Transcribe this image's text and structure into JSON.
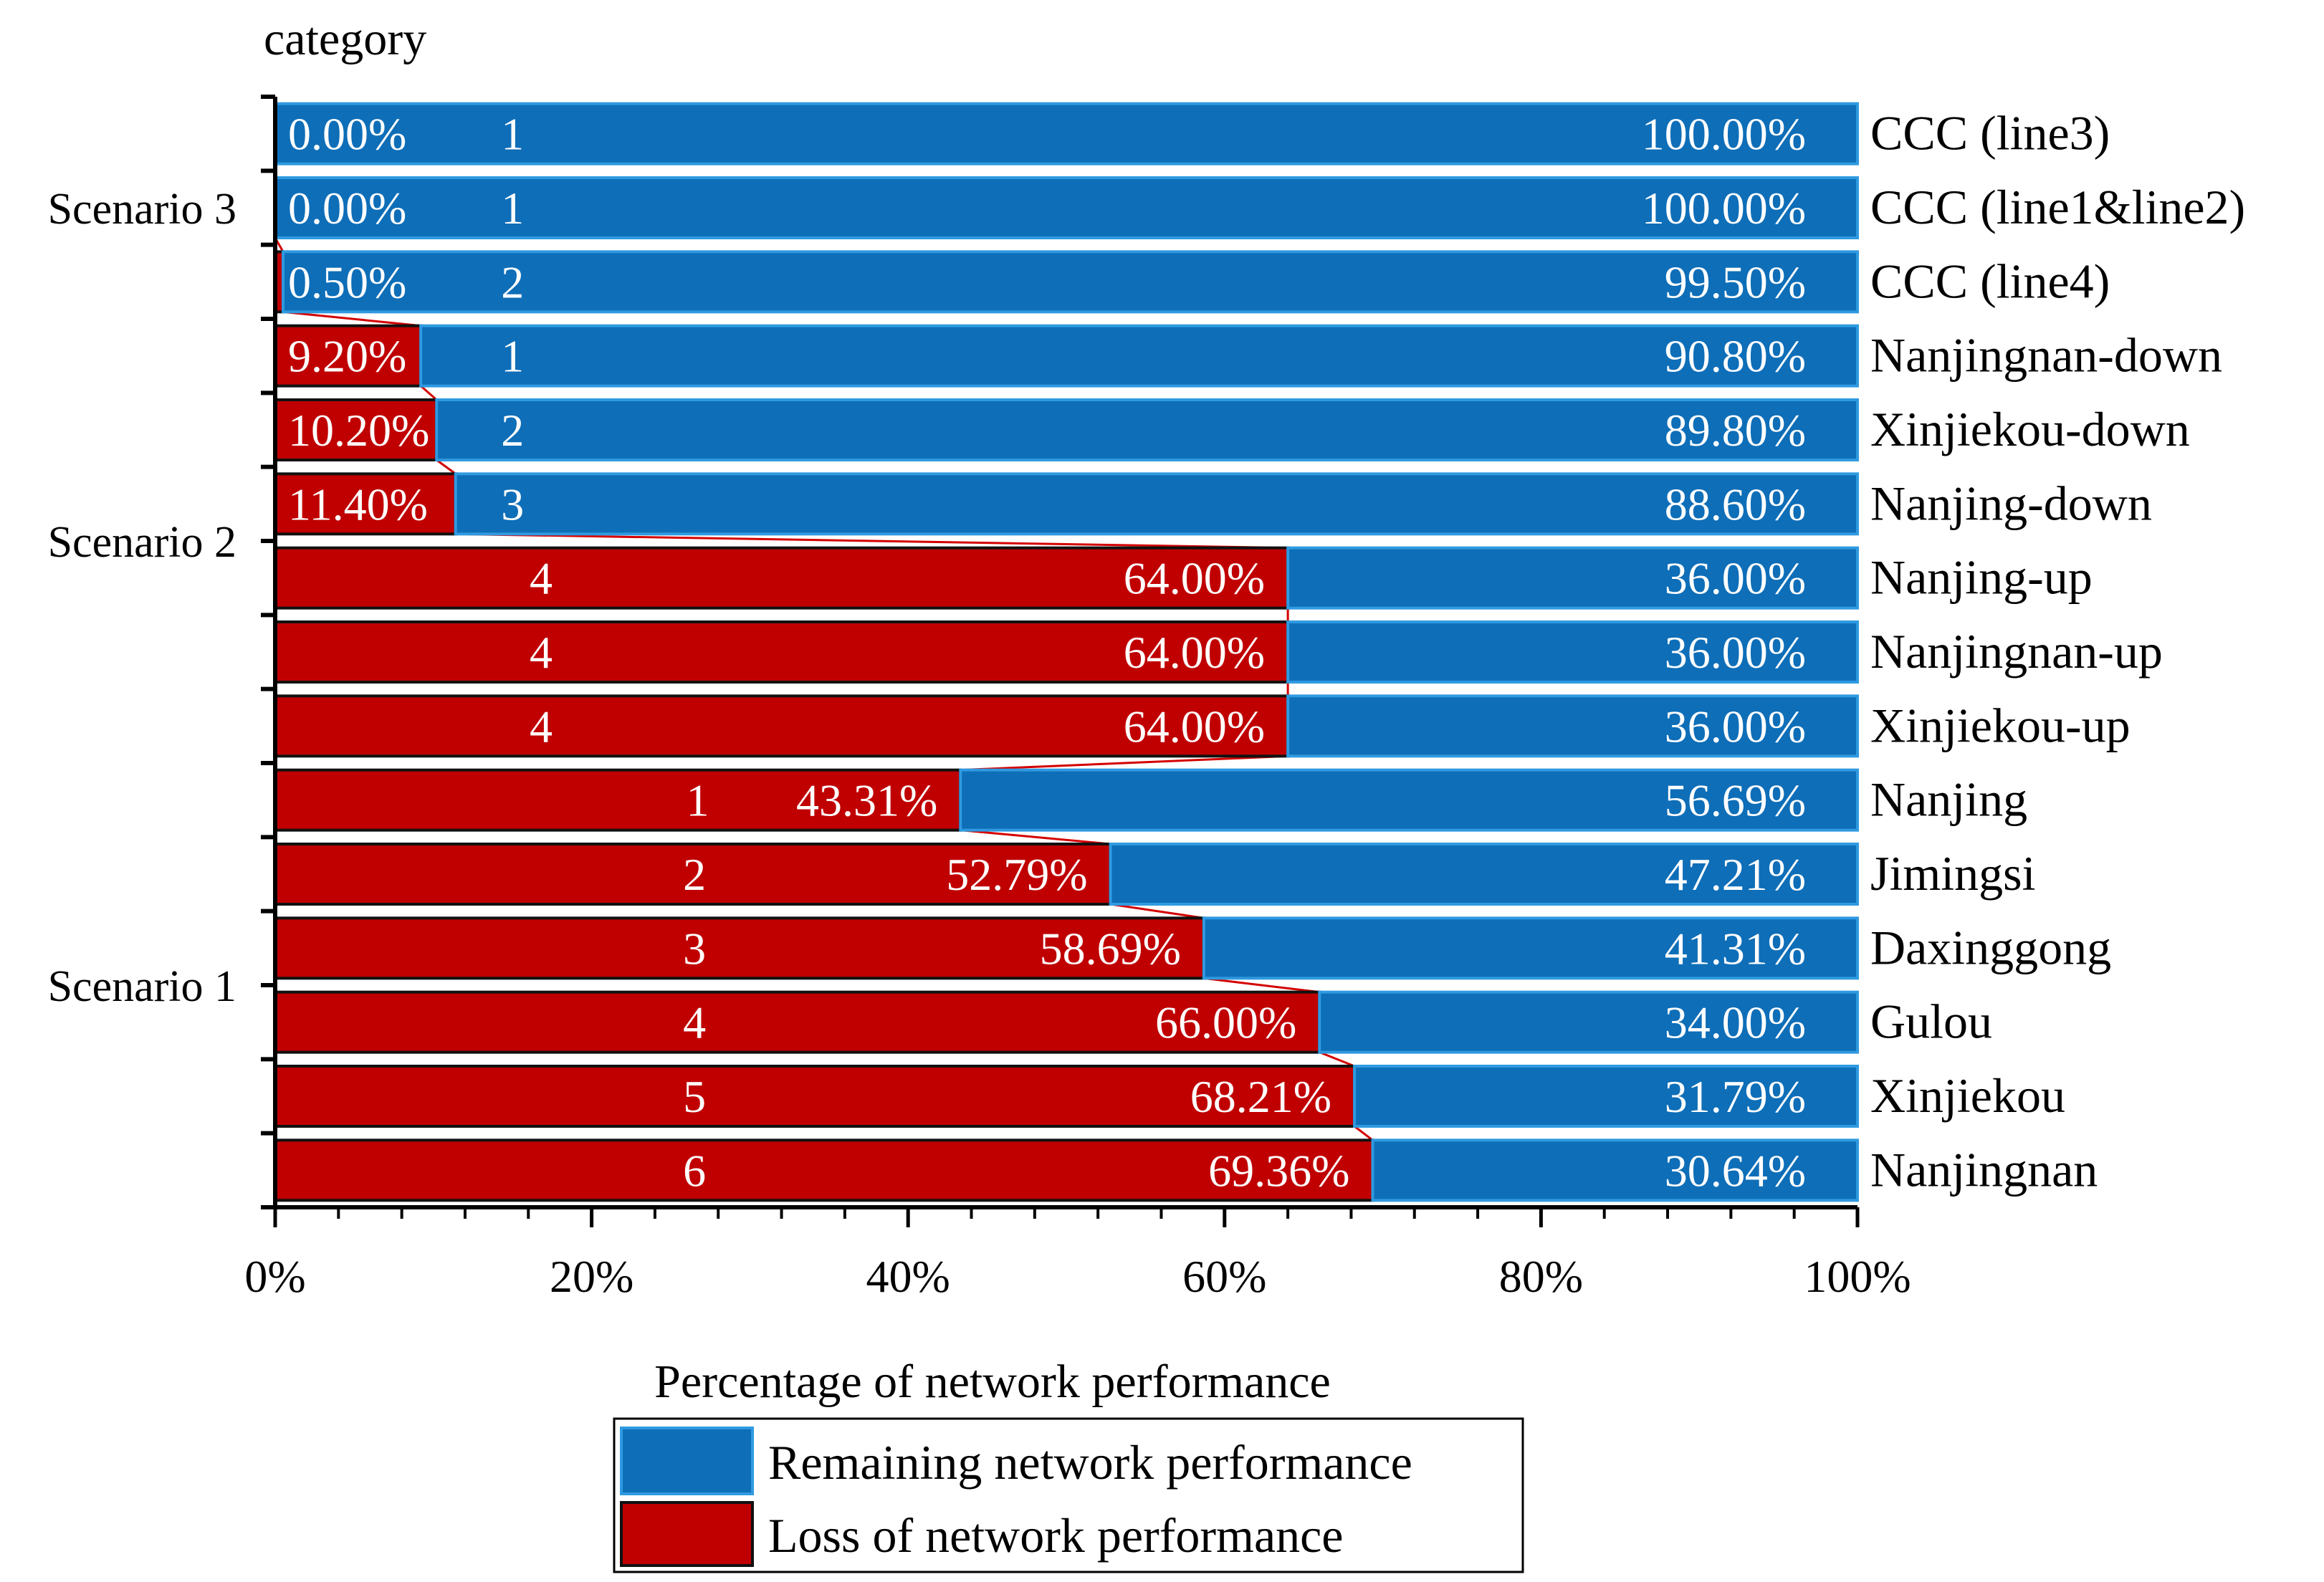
{
  "chart_data": {
    "type": "bar",
    "orientation": "horizontal",
    "stacked": true,
    "ylabel": "category",
    "xlabel": "Percentage of network performance",
    "xlim": [
      0,
      100
    ],
    "x_ticks": [
      "0%",
      "20%",
      "40%",
      "60%",
      "80%",
      "100%"
    ],
    "categories": [
      "CCC (line3)",
      "CCC (line1&line2)",
      "CCC (line4)",
      "Nanjingnan-down",
      "Xinjiekou-down",
      "Nanjing-down",
      "Nanjing-up",
      "Nanjingnan-up",
      "Xinjiekou-up",
      "Nanjing",
      "Jimingsi",
      "Daxinggong",
      "Gulou",
      "Xinjiekou",
      "Nanjingnan"
    ],
    "rank_labels": [
      "1",
      "1",
      "2",
      "1",
      "2",
      "3",
      "4",
      "4",
      "4",
      "1",
      "2",
      "3",
      "4",
      "5",
      "6"
    ],
    "groups": [
      {
        "name": "Scenario 3",
        "from": 0,
        "to": 2
      },
      {
        "name": "Scenario 2",
        "from": 3,
        "to": 8
      },
      {
        "name": "Scenario 1",
        "from": 9,
        "to": 14
      }
    ],
    "series": [
      {
        "name": "Loss of network performance",
        "color": "#c00000",
        "values": [
          0.0,
          0.0,
          0.5,
          9.2,
          10.2,
          11.4,
          64.0,
          64.0,
          64.0,
          43.31,
          52.79,
          58.69,
          66.0,
          68.21,
          69.36
        ],
        "labels": [
          "0.00%",
          "0.00%",
          "0.50%",
          "9.20%",
          "10.20%",
          "11.40%",
          "64.00%",
          "64.00%",
          "64.00%",
          "43.31%",
          "52.79%",
          "58.69%",
          "66.00%",
          "68.21%",
          "69.36%"
        ]
      },
      {
        "name": "Remaining network performance",
        "color": "#0e6eb8",
        "values": [
          100.0,
          100.0,
          99.5,
          90.8,
          89.8,
          88.6,
          36.0,
          36.0,
          36.0,
          56.69,
          47.21,
          41.31,
          34.0,
          31.79,
          30.64
        ],
        "labels": [
          "100.00%",
          "100.00%",
          "99.50%",
          "90.80%",
          "89.80%",
          "88.60%",
          "36.00%",
          "36.00%",
          "36.00%",
          "56.69%",
          "47.21%",
          "41.31%",
          "34.00%",
          "31.79%",
          "30.64%"
        ]
      }
    ],
    "legend": {
      "title": "Percentage of network performance",
      "position": "bottom-center",
      "items": [
        "Remaining network performance",
        "Loss of network performance"
      ]
    }
  }
}
